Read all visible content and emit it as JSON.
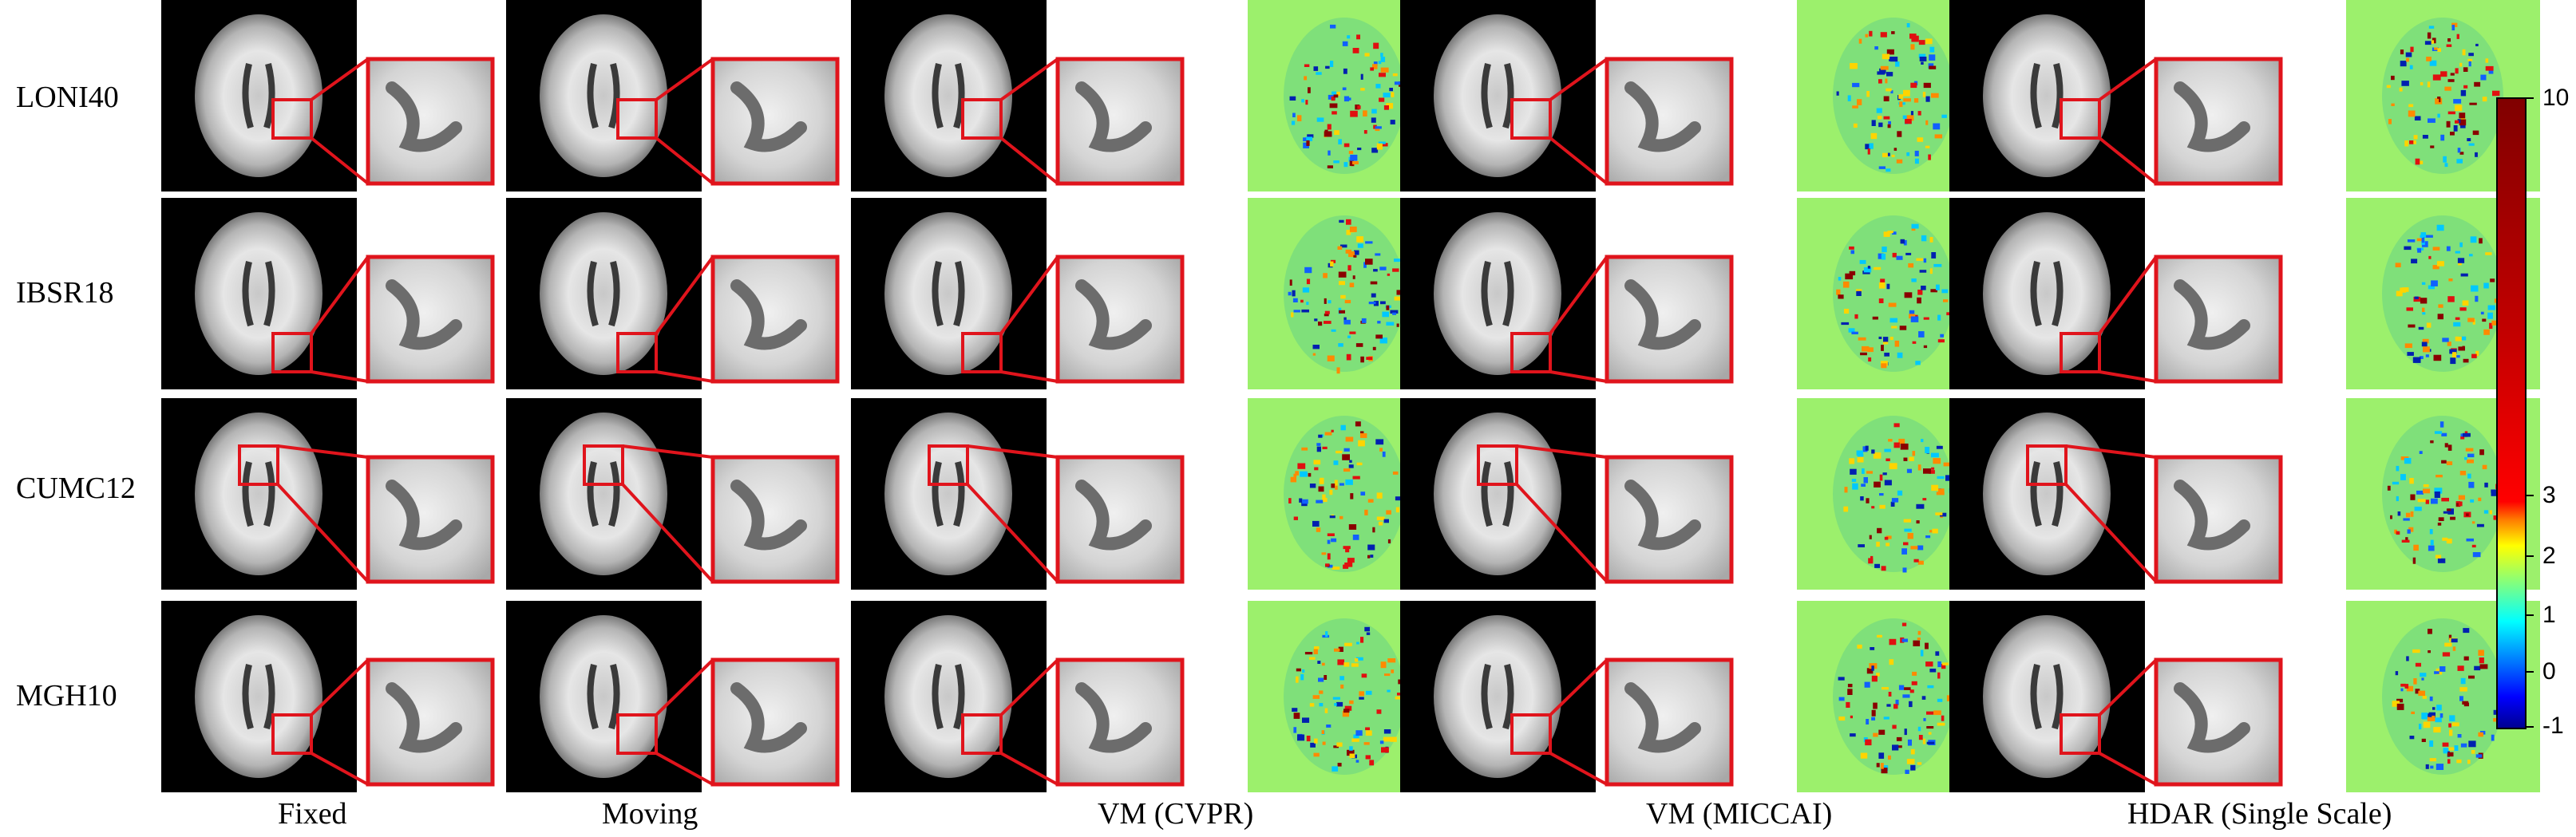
{
  "rows": [
    "LONI40",
    "IBSR18",
    "CUMC12",
    "MGH10"
  ],
  "columns": [
    "Fixed",
    "Moving",
    "VM (CVPR)",
    "VM (MICCAI)",
    "HDAR (Single Scale)"
  ],
  "colorbar": {
    "ticks": [
      "10",
      "3",
      "2",
      "1",
      "0",
      "-1"
    ],
    "colormap": "jet",
    "min": -1,
    "max": 10
  },
  "colors": {
    "highlight_box": "#e0141c",
    "background_dark": "#000000",
    "diff_background": "#9cf06c"
  }
}
